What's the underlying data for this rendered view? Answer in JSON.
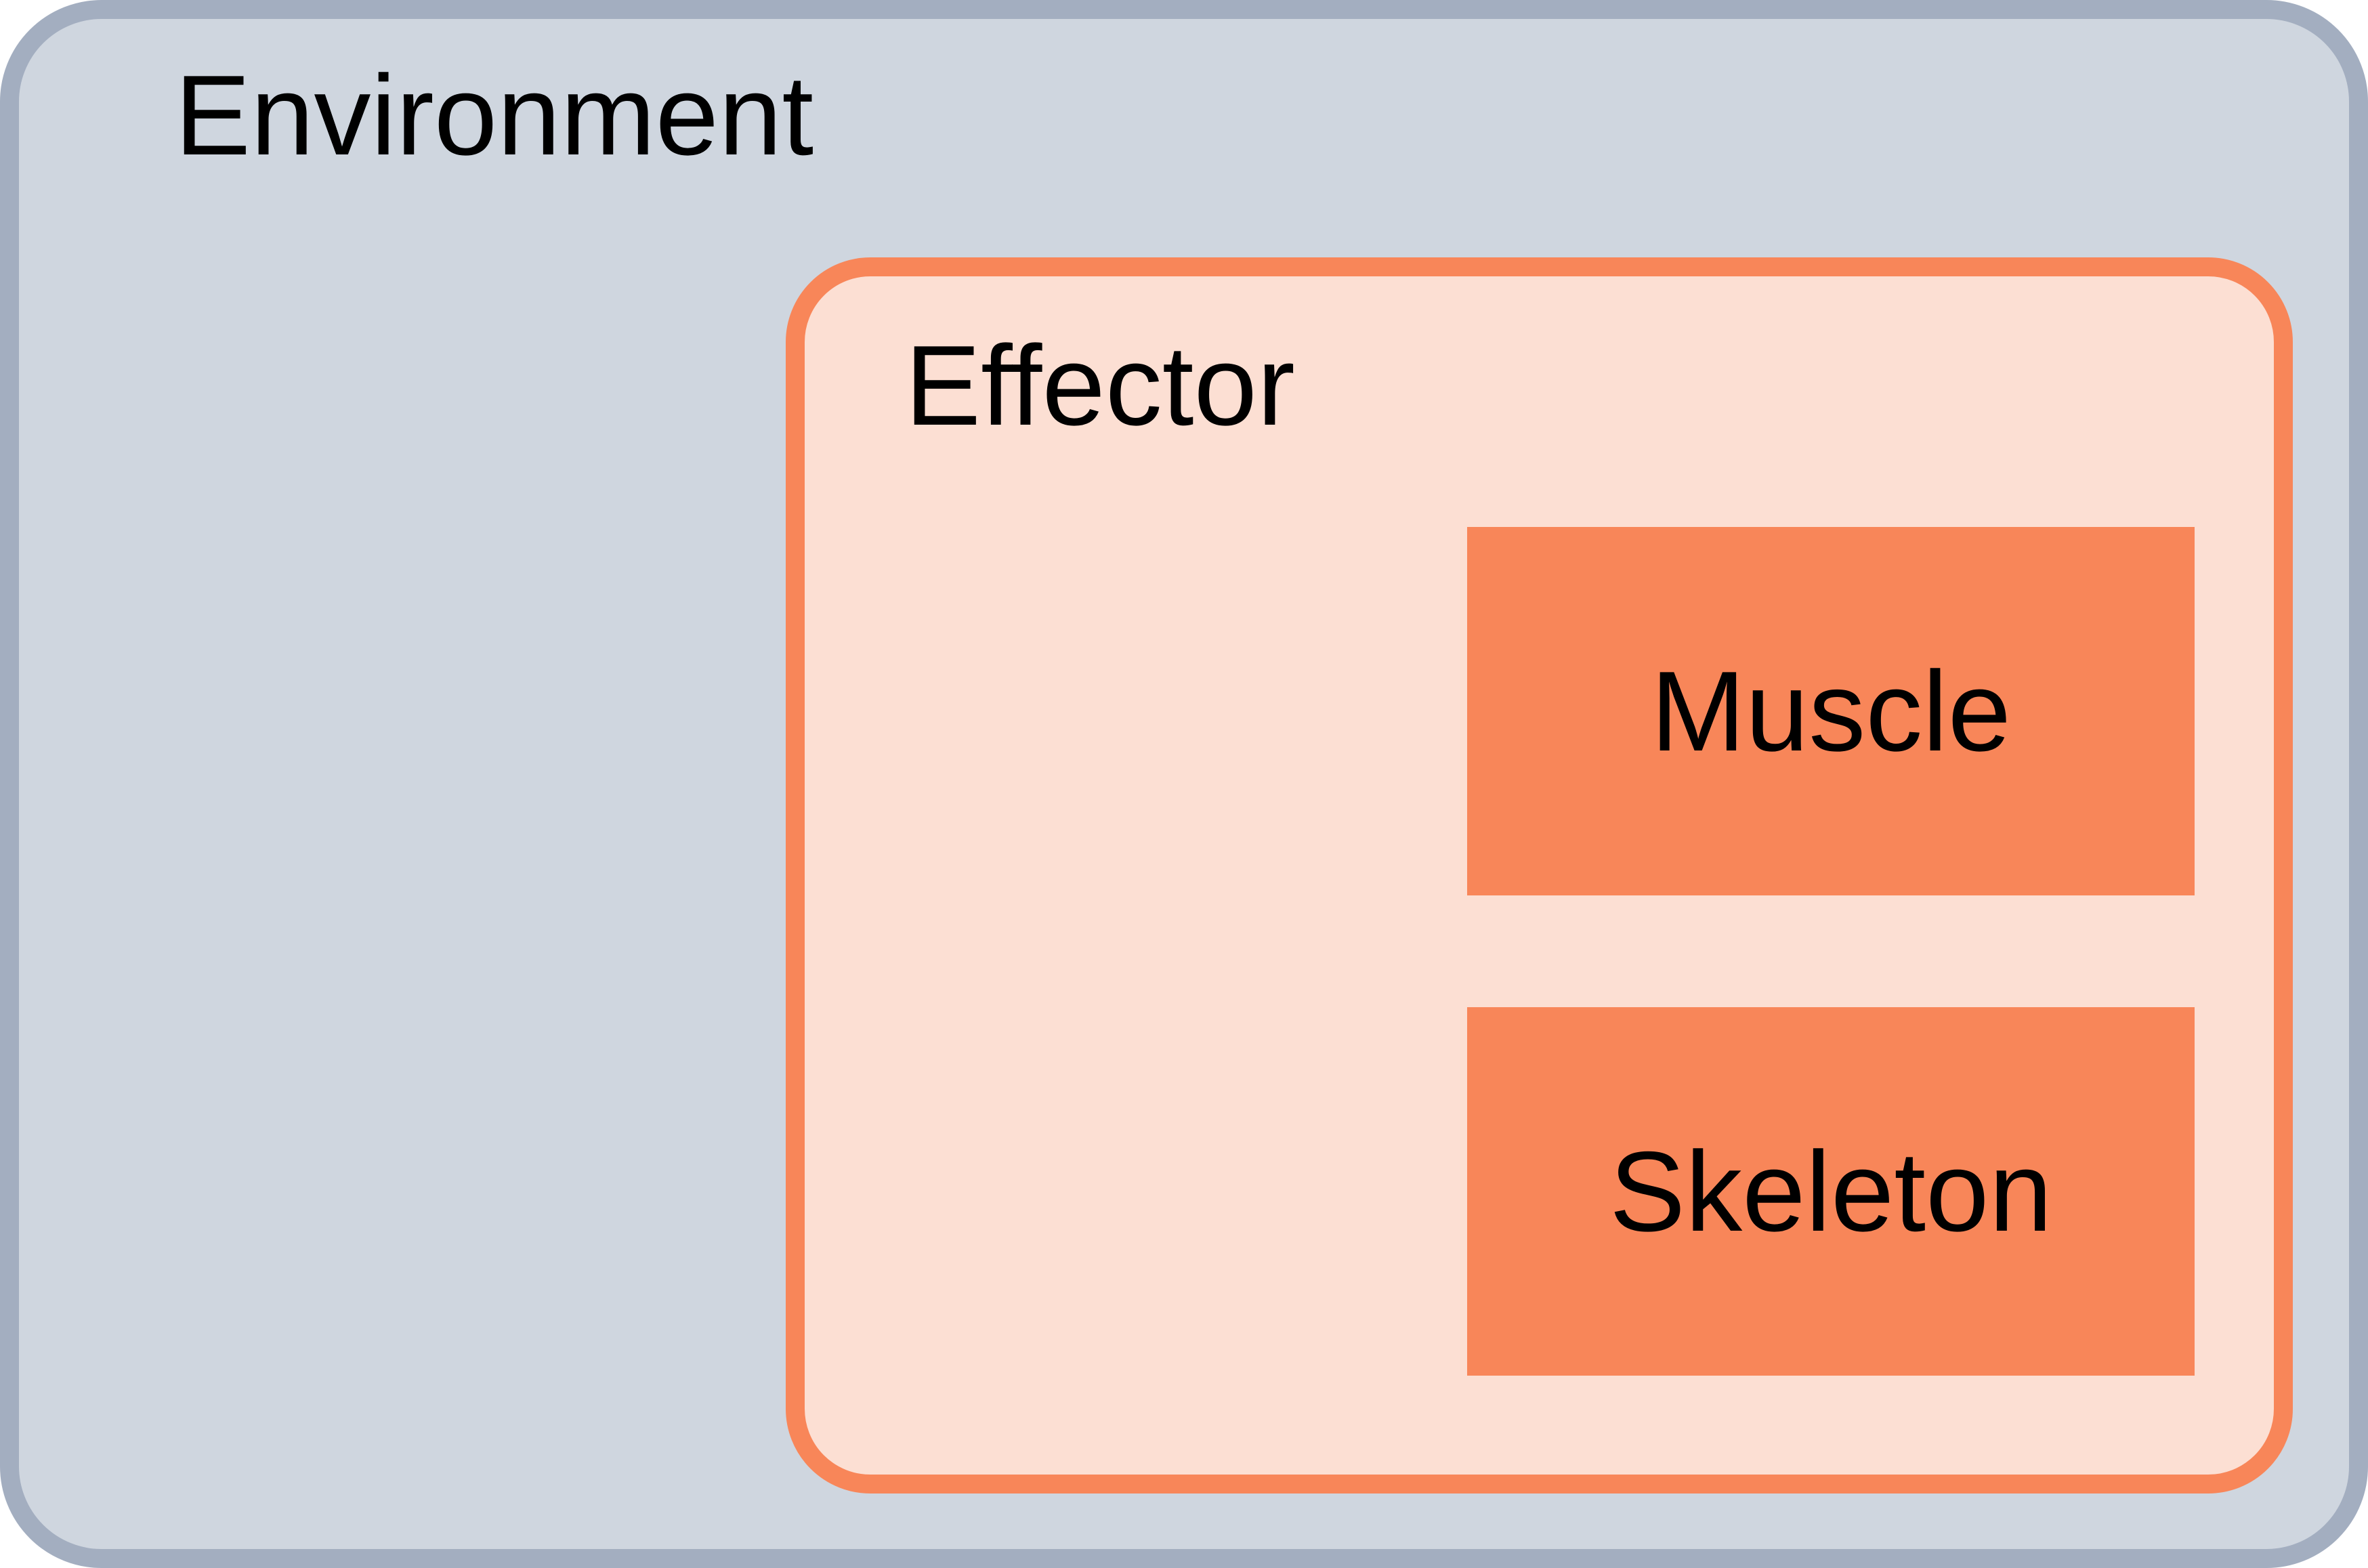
{
  "environment": {
    "label": "Environment",
    "color": "#cfd6df",
    "border_color": "#a3aec0"
  },
  "effector": {
    "label": "Effector",
    "color": "#fcdfd3",
    "border_color": "#f88659",
    "components": [
      {
        "label": "Muscle",
        "color": "#f88659"
      },
      {
        "label": "Skeleton",
        "color": "#f88659"
      }
    ]
  }
}
